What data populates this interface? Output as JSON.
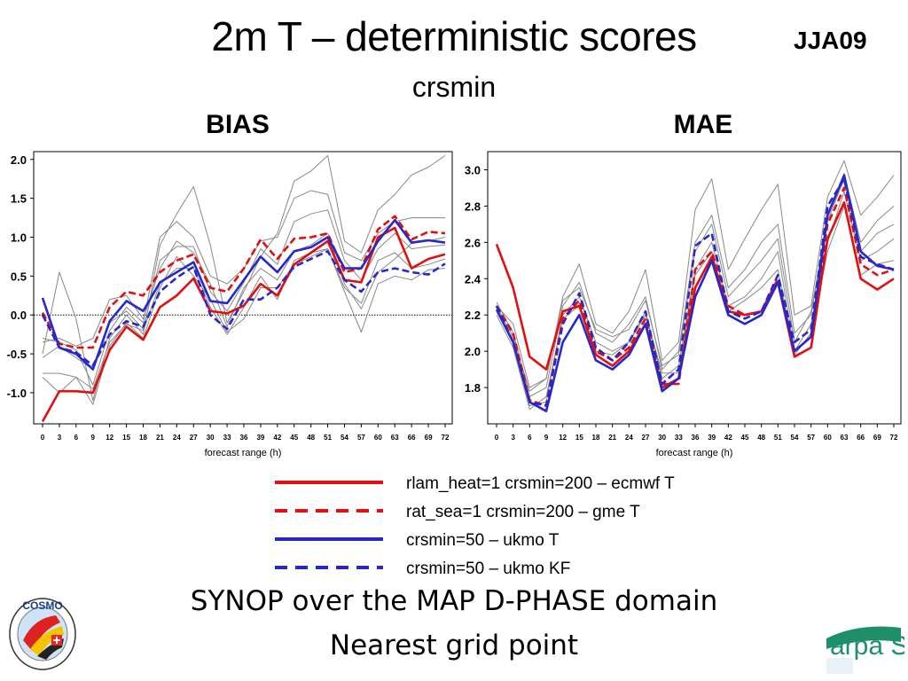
{
  "header": {
    "title": "2m T – deterministic scores",
    "season": "JJA09",
    "subtitle": "crsmin"
  },
  "footer": {
    "line1": "SYNOP over the MAP D-PHASE domain",
    "line2": "Nearest grid point"
  },
  "logos": {
    "left": "COSMO",
    "right": "arpa SIM"
  },
  "colors": {
    "red": "#e01010",
    "blue": "#2828c8",
    "grey": "#888888"
  },
  "legend": [
    {
      "label": "rlam_heat=1 crsmin=200 – ecmwf T",
      "color": "#e01010",
      "style": "solid"
    },
    {
      "label": "rat_sea=1 crsmin=200 – gme T",
      "color": "#e01010",
      "style": "dashed"
    },
    {
      "label": "crsmin=50 – ukmo T",
      "color": "#2828c8",
      "style": "solid"
    },
    {
      "label": "crsmin=50 – ukmo KF",
      "color": "#2828c8",
      "style": "dashed"
    }
  ],
  "chart_data": [
    {
      "type": "line",
      "title": "BIAS",
      "xlabel": "forecast range (h)",
      "ylabel": "",
      "x": [
        "0",
        "3",
        "6",
        "9",
        "12",
        "15",
        "18",
        "21",
        "24",
        "27",
        "30",
        "33",
        "36",
        "39",
        "42",
        "45",
        "48",
        "51",
        "54",
        "57",
        "60",
        "63",
        "66",
        "69",
        "72"
      ],
      "ylim": [
        -1.4,
        2.1
      ],
      "yticks": [
        2.0,
        1.5,
        1.0,
        0.5,
        0.0,
        -0.5,
        -1.0
      ],
      "ytick_labels": [
        "2.0",
        "1.5",
        "1.0",
        "0.5",
        "0.0",
        "-0.5",
        "-1.0"
      ],
      "zero_line": true,
      "series": [
        {
          "color": "#e01010",
          "style": "solid",
          "values": [
            -1.37,
            -0.98,
            -0.98,
            -1.0,
            -0.45,
            -0.15,
            -0.32,
            0.1,
            0.25,
            0.47,
            0.05,
            0.02,
            0.12,
            0.4,
            0.25,
            0.65,
            0.8,
            0.95,
            0.45,
            0.42,
            1.0,
            1.12,
            0.6,
            0.72,
            0.78
          ]
        },
        {
          "color": "#e01010",
          "style": "dashed",
          "values": [
            0.03,
            -0.37,
            -0.42,
            -0.42,
            0.1,
            0.3,
            0.25,
            0.55,
            0.7,
            0.78,
            0.35,
            0.3,
            0.6,
            0.97,
            0.72,
            0.98,
            1.0,
            1.05,
            0.55,
            0.6,
            1.1,
            1.27,
            0.97,
            1.07,
            1.05
          ]
        },
        {
          "color": "#2828c8",
          "style": "solid",
          "values": [
            0.22,
            -0.42,
            -0.5,
            -0.7,
            -0.08,
            0.18,
            0.05,
            0.42,
            0.55,
            0.68,
            0.18,
            0.15,
            0.45,
            0.75,
            0.55,
            0.82,
            0.87,
            1.0,
            0.6,
            0.6,
            0.95,
            1.22,
            0.93,
            0.96,
            0.93
          ]
        },
        {
          "color": "#2828c8",
          "style": "dashed",
          "values": [
            0.0,
            -0.42,
            -0.48,
            -0.65,
            -0.25,
            -0.08,
            -0.15,
            0.3,
            0.48,
            0.62,
            0.0,
            -0.18,
            0.2,
            0.2,
            0.35,
            0.62,
            0.72,
            0.82,
            0.45,
            0.3,
            0.55,
            0.6,
            0.55,
            0.52,
            0.66
          ]
        },
        {
          "color": "#888888",
          "style": "solid",
          "values": [
            -0.5,
            0.55,
            -0.05,
            -1.1,
            -0.3,
            0.0,
            -0.25,
            0.9,
            1.3,
            1.65,
            0.9,
            -0.1,
            0.3,
            0.75,
            1.05,
            1.72,
            1.85,
            2.05,
            0.95,
            0.8,
            1.35,
            1.55,
            1.8,
            1.9,
            2.05
          ]
        },
        {
          "color": "#888888",
          "style": "solid",
          "values": [
            -0.35,
            -0.3,
            -0.4,
            -0.3,
            0.2,
            0.25,
            -0.05,
            0.6,
            0.95,
            0.8,
            0.4,
            -0.15,
            0.35,
            0.6,
            0.45,
            0.82,
            0.9,
            1.05,
            0.4,
            0.08,
            0.55,
            0.72,
            0.92,
            0.95,
            1.0
          ]
        },
        {
          "color": "#888888",
          "style": "solid",
          "values": [
            -0.75,
            -0.75,
            -0.8,
            -1.15,
            -0.4,
            -0.1,
            -0.3,
            0.35,
            0.75,
            0.5,
            0.2,
            -0.22,
            -0.05,
            0.35,
            0.35,
            0.65,
            0.75,
            0.85,
            0.3,
            -0.22,
            0.4,
            0.5,
            0.45,
            0.58,
            0.6
          ]
        },
        {
          "color": "#888888",
          "style": "solid",
          "values": [
            -0.8,
            -1.0,
            -0.8,
            -0.95,
            -0.35,
            -0.12,
            -0.2,
            0.4,
            0.6,
            0.6,
            0.1,
            -0.25,
            0.1,
            0.5,
            0.2,
            0.7,
            0.8,
            0.85,
            0.35,
            0.15,
            0.7,
            0.8,
            0.6,
            0.65,
            0.72
          ]
        },
        {
          "color": "#888888",
          "style": "solid",
          "values": [
            -0.3,
            -0.35,
            -0.45,
            -0.9,
            -0.2,
            0.1,
            -0.1,
            1.0,
            1.2,
            1.0,
            0.5,
            0.4,
            0.6,
            0.95,
            1.0,
            1.5,
            1.6,
            1.55,
            0.8,
            0.7,
            1.05,
            1.2,
            1.25,
            1.25,
            1.25
          ]
        },
        {
          "color": "#888888",
          "style": "solid",
          "values": [
            -0.55,
            -0.4,
            -0.55,
            -0.7,
            -0.1,
            0.05,
            -0.18,
            0.7,
            0.88,
            0.88,
            0.3,
            0.05,
            0.42,
            0.85,
            0.65,
            1.2,
            1.3,
            1.35,
            0.7,
            0.45,
            0.85,
            1.05,
            0.85,
            0.88,
            0.9
          ]
        }
      ]
    },
    {
      "type": "line",
      "title": "MAE",
      "xlabel": "forecast range (h)",
      "ylabel": "",
      "x": [
        "0",
        "3",
        "6",
        "9",
        "12",
        "15",
        "18",
        "21",
        "24",
        "27",
        "30",
        "33",
        "36",
        "39",
        "42",
        "45",
        "48",
        "51",
        "54",
        "57",
        "60",
        "63",
        "66",
        "69",
        "72"
      ],
      "ylim": [
        1.6,
        3.1
      ],
      "yticks": [
        3.0,
        2.8,
        2.6,
        2.4,
        2.2,
        2.0,
        1.8
      ],
      "ytick_labels": [
        "3.0",
        "2.8",
        "2.6",
        "2.4",
        "2.2",
        "2.0",
        "1.8"
      ],
      "zero_line": false,
      "series": [
        {
          "color": "#e01010",
          "style": "solid",
          "values": [
            2.59,
            2.35,
            1.97,
            1.9,
            2.22,
            2.25,
            1.98,
            1.92,
            2.0,
            2.15,
            1.8,
            1.85,
            2.35,
            2.52,
            2.22,
            2.2,
            2.22,
            2.38,
            1.97,
            2.02,
            2.62,
            2.82,
            2.4,
            2.34,
            2.4
          ]
        },
        {
          "color": "#e01010",
          "style": "dashed",
          "values": [
            2.25,
            2.1,
            1.73,
            1.7,
            2.18,
            2.28,
            2.0,
            1.95,
            2.02,
            2.18,
            1.82,
            1.82,
            2.45,
            2.55,
            2.25,
            2.2,
            2.22,
            2.4,
            2.0,
            2.08,
            2.7,
            2.9,
            2.48,
            2.42,
            2.45
          ]
        },
        {
          "color": "#2828c8",
          "style": "solid",
          "values": [
            2.23,
            2.05,
            1.72,
            1.67,
            2.05,
            2.2,
            1.95,
            1.9,
            1.98,
            2.15,
            1.78,
            1.85,
            2.3,
            2.5,
            2.2,
            2.15,
            2.2,
            2.38,
            2.0,
            2.08,
            2.75,
            2.97,
            2.55,
            2.47,
            2.45
          ]
        },
        {
          "color": "#2828c8",
          "style": "dashed",
          "values": [
            2.25,
            2.05,
            1.72,
            1.7,
            2.15,
            2.32,
            2.02,
            1.95,
            2.05,
            2.22,
            1.82,
            1.9,
            2.58,
            2.65,
            2.22,
            2.18,
            2.22,
            2.42,
            2.05,
            2.12,
            2.8,
            2.95,
            2.52,
            2.48,
            2.45
          ]
        },
        {
          "color": "#888888",
          "style": "solid",
          "values": [
            2.25,
            2.15,
            1.8,
            1.85,
            2.3,
            2.48,
            2.15,
            2.1,
            2.22,
            2.45,
            1.95,
            2.05,
            2.78,
            2.95,
            2.45,
            2.62,
            2.78,
            2.92,
            2.2,
            2.25,
            2.85,
            3.05,
            2.75,
            2.85,
            2.97
          ]
        },
        {
          "color": "#888888",
          "style": "solid",
          "values": [
            2.27,
            2.1,
            1.75,
            1.8,
            2.25,
            2.38,
            2.1,
            2.05,
            2.15,
            2.3,
            1.9,
            2.0,
            2.6,
            2.75,
            2.35,
            2.45,
            2.6,
            2.7,
            2.1,
            2.2,
            2.75,
            2.98,
            2.6,
            2.72,
            2.8
          ]
        },
        {
          "color": "#888888",
          "style": "solid",
          "values": [
            2.22,
            2.05,
            1.7,
            1.72,
            2.2,
            2.3,
            2.05,
            2.0,
            2.05,
            2.22,
            1.85,
            1.92,
            2.45,
            2.6,
            2.25,
            2.3,
            2.4,
            2.55,
            2.0,
            2.15,
            2.6,
            2.88,
            2.5,
            2.55,
            2.62
          ]
        },
        {
          "color": "#888888",
          "style": "solid",
          "values": [
            2.25,
            2.08,
            1.78,
            1.85,
            2.28,
            2.35,
            2.12,
            2.08,
            2.12,
            2.28,
            1.92,
            1.98,
            2.55,
            2.7,
            2.3,
            2.4,
            2.5,
            2.62,
            2.05,
            2.22,
            2.72,
            2.95,
            2.55,
            2.65,
            2.7
          ]
        },
        {
          "color": "#888888",
          "style": "solid",
          "values": [
            2.2,
            2.02,
            1.68,
            1.75,
            2.18,
            2.25,
            2.0,
            1.98,
            2.05,
            2.2,
            1.88,
            1.88,
            2.42,
            2.55,
            2.22,
            2.28,
            2.35,
            2.45,
            1.98,
            2.1,
            2.55,
            2.8,
            2.42,
            2.48,
            2.5
          ]
        }
      ]
    }
  ]
}
